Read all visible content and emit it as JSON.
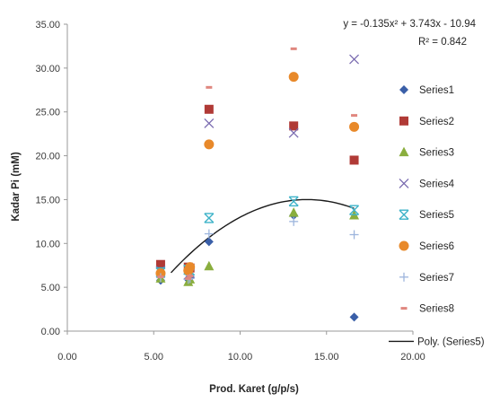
{
  "chart_data": {
    "type": "scatter",
    "xlabel": "Prod. Karet (g/p/s)",
    "ylabel": "Kadar Pi (mM)",
    "xlim": [
      0,
      20
    ],
    "ylim": [
      0,
      35
    ],
    "x_ticks": [
      "0.00",
      "5.00",
      "10.00",
      "15.00",
      "20.00"
    ],
    "y_ticks": [
      "0.00",
      "5.00",
      "10.00",
      "15.00",
      "20.00",
      "25.00",
      "30.00",
      "35.00"
    ],
    "grid": false,
    "legend_position": "right",
    "series": [
      {
        "name": "Series1",
        "marker": "diamond",
        "color": "#3a5fa8",
        "points": [
          [
            5.4,
            5.8
          ],
          [
            7.0,
            5.9
          ],
          [
            7.1,
            6.1
          ],
          [
            8.2,
            10.2
          ],
          [
            13.1,
            13.2
          ],
          [
            16.6,
            1.6
          ]
        ]
      },
      {
        "name": "Series2",
        "marker": "square",
        "color": "#b03a36",
        "points": [
          [
            5.4,
            7.6
          ],
          [
            7.0,
            7.3
          ],
          [
            7.1,
            7.2
          ],
          [
            8.2,
            25.3
          ],
          [
            13.1,
            23.4
          ],
          [
            16.6,
            19.5
          ]
        ]
      },
      {
        "name": "Series3",
        "marker": "triangle",
        "color": "#8aae3e",
        "points": [
          [
            5.4,
            6.0
          ],
          [
            7.0,
            5.6
          ],
          [
            7.1,
            5.9
          ],
          [
            8.2,
            7.4
          ],
          [
            13.1,
            13.5
          ],
          [
            16.6,
            13.2
          ]
        ]
      },
      {
        "name": "Series4",
        "marker": "x",
        "color": "#7a6bb0",
        "points": [
          [
            5.4,
            6.9
          ],
          [
            7.0,
            6.4
          ],
          [
            7.1,
            6.6
          ],
          [
            8.2,
            23.7
          ],
          [
            13.1,
            22.6
          ],
          [
            16.6,
            31.0
          ]
        ]
      },
      {
        "name": "Series5",
        "marker": "asterisk",
        "color": "#3fb3c9",
        "points": [
          [
            5.4,
            6.7
          ],
          [
            7.0,
            7.0
          ],
          [
            7.1,
            6.9
          ],
          [
            8.2,
            12.9
          ],
          [
            13.1,
            14.8
          ],
          [
            16.6,
            13.8
          ]
        ]
      },
      {
        "name": "Series6",
        "marker": "circle",
        "color": "#e8892a",
        "points": [
          [
            5.4,
            6.6
          ],
          [
            7.0,
            6.9
          ],
          [
            7.1,
            7.3
          ],
          [
            8.2,
            21.3
          ],
          [
            13.1,
            29.0
          ],
          [
            16.6,
            23.3
          ]
        ]
      },
      {
        "name": "Series7",
        "marker": "plus",
        "color": "#9db5dd",
        "points": [
          [
            5.4,
            6.1
          ],
          [
            7.0,
            5.9
          ],
          [
            7.1,
            6.0
          ],
          [
            8.2,
            11.1
          ],
          [
            13.1,
            12.5
          ],
          [
            16.6,
            11.0
          ]
        ]
      },
      {
        "name": "Series8",
        "marker": "dash",
        "color": "#e0877f",
        "points": [
          [
            5.4,
            6.2
          ],
          [
            7.0,
            6.0
          ],
          [
            7.1,
            6.3
          ],
          [
            8.2,
            27.8
          ],
          [
            13.1,
            32.2
          ],
          [
            16.6,
            24.6
          ]
        ]
      }
    ],
    "trendline": {
      "name": "Poly. (Series5)",
      "color": "#1a1a1a",
      "coefficients": [
        -0.135,
        3.743,
        -10.94
      ],
      "x_range": [
        6.0,
        16.6
      ],
      "equation": "y = -0.135x² + 3.743x - 10.94",
      "r2": "R² = 0.842"
    }
  }
}
